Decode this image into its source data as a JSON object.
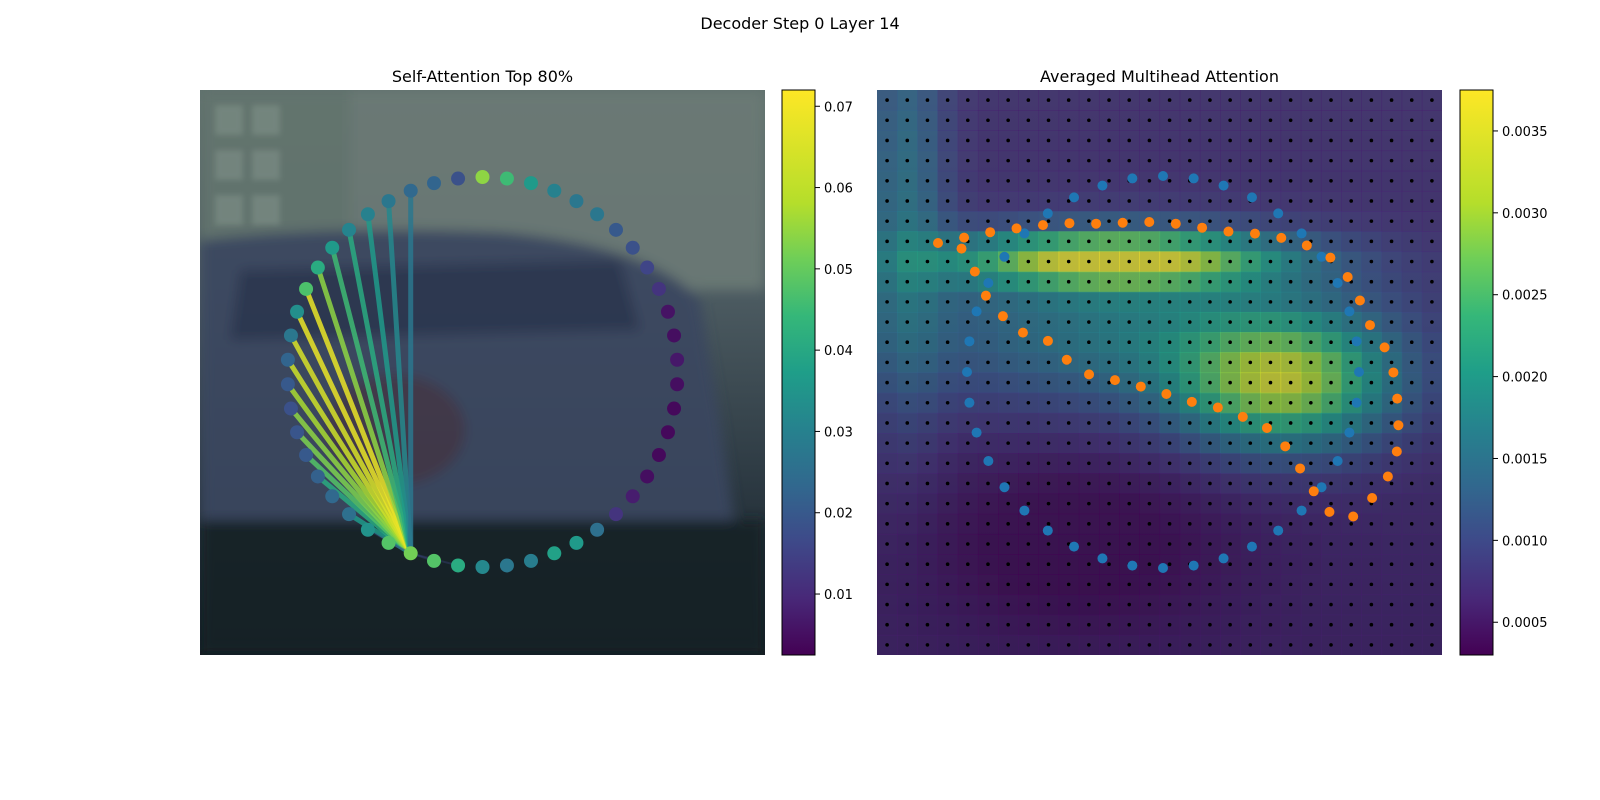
{
  "figure": {
    "title": "Decoder Step 0 Layer 14"
  },
  "chart_data": [
    {
      "type": "network",
      "title": "Self-Attention Top 80%",
      "background": "photo of a parked car beside a building wall (blurred)",
      "colormap": "viridis",
      "colorbar": {
        "range": [
          0.0025,
          0.072
        ],
        "ticks": [
          0.01,
          0.02,
          0.03,
          0.04,
          0.05,
          0.06,
          0.07
        ],
        "tick_labels": [
          "0.01",
          "0.02",
          "0.03",
          "0.04",
          "0.05",
          "0.06",
          "0.07"
        ]
      },
      "node_count": 50,
      "node_values": [
        0.06,
        0.05,
        0.04,
        0.033,
        0.03,
        0.03,
        0.022,
        0.02,
        0.017,
        0.013,
        0.006,
        0.005,
        0.007,
        0.005,
        0.004,
        0.004,
        0.004,
        0.005,
        0.008,
        0.013,
        0.028,
        0.04,
        0.042,
        0.032,
        0.03,
        0.035,
        0.045,
        0.053,
        0.057,
        0.053,
        0.038,
        0.028,
        0.026,
        0.024,
        0.022,
        0.021,
        0.02,
        0.022,
        0.025,
        0.03,
        0.037,
        0.052,
        0.045,
        0.04,
        0.034,
        0.033,
        0.03,
        0.026,
        0.025,
        0.02
      ],
      "source_node": 28,
      "edge_targets": [
        31,
        33,
        34,
        35,
        36,
        37,
        38,
        39,
        40,
        41,
        42,
        43,
        44,
        45,
        46,
        47
      ],
      "edge_values": [
        0.04,
        0.045,
        0.053,
        0.058,
        0.06,
        0.063,
        0.067,
        0.068,
        0.07,
        0.07,
        0.06,
        0.05,
        0.045,
        0.04,
        0.035,
        0.03
      ]
    },
    {
      "type": "heatmap",
      "title": "Averaged Multihead Attention",
      "background": "photo of a parked car beside a building wall (blurred)",
      "colormap": "viridis",
      "colorbar": {
        "range": [
          0.0003,
          0.00375
        ],
        "ticks": [
          0.0005,
          0.001,
          0.0015,
          0.002,
          0.0025,
          0.003,
          0.0035
        ],
        "tick_labels": [
          "0.0005",
          "0.0010",
          "0.0015",
          "0.0020",
          "0.0025",
          "0.0030",
          "0.0035"
        ]
      },
      "grid": {
        "rows": 28,
        "cols": 28
      },
      "heat_peak_value": 0.0037,
      "sampling_points_color": "#000000",
      "series": [
        {
          "color": "#1f77b4",
          "shape": "closed ring",
          "point_count": 40
        },
        {
          "color": "#ff7f0e",
          "shape": "closed curved band",
          "point_count": 46
        }
      ]
    }
  ]
}
